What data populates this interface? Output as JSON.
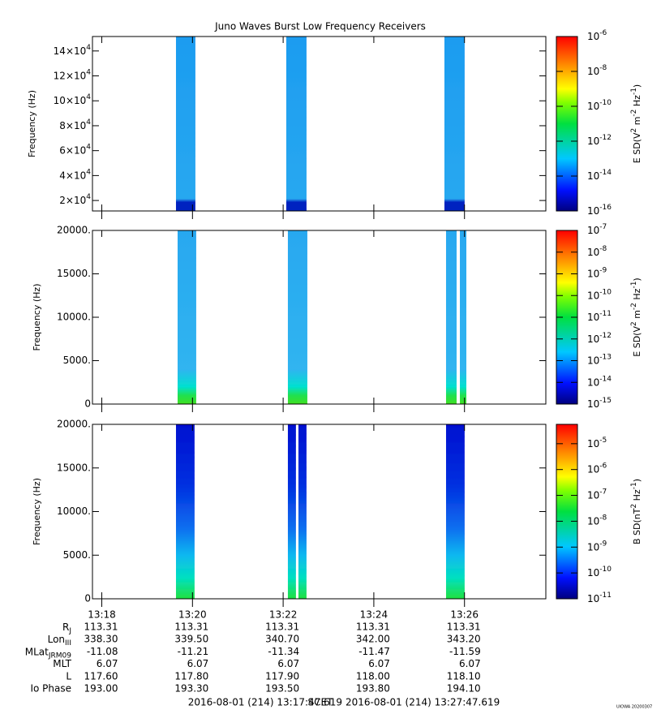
{
  "chart_data": [
    {
      "type": "spectrogram",
      "title": "Juno Waves Burst Low Frequency Receivers",
      "ylabel": "Frequency (Hz)",
      "ylim": [
        11600,
        151600
      ],
      "yticks": [
        {
          "value": 20000,
          "label": "2×10^4"
        },
        {
          "value": 40000,
          "label": "4×10^4"
        },
        {
          "value": 60000,
          "label": "6×10^4"
        },
        {
          "value": 80000,
          "label": "8×10^4"
        },
        {
          "value": 100000,
          "label": "10×10^4"
        },
        {
          "value": 120000,
          "label": "12×10^4"
        },
        {
          "value": 140000,
          "label": "14×10^4"
        }
      ],
      "xlim": [
        797.794,
        807.794
      ],
      "xticks": [
        {
          "value": 798,
          "label": "13:18"
        },
        {
          "value": 800,
          "label": "13:20"
        },
        {
          "value": 802,
          "label": "13:22"
        },
        {
          "value": 804,
          "label": "13:24"
        },
        {
          "value": 806,
          "label": "13:26"
        }
      ],
      "bursts": [
        [
          799.636,
          800.065
        ],
        [
          802.069,
          802.516
        ],
        [
          805.557,
          806.004
        ]
      ],
      "colorbar_label": "E SD(V^2 m^-2 Hz^-1)",
      "log_z": true,
      "zlim": [
        1e-16,
        1e-06
      ],
      "zticks": [
        {
          "value": 1e-06,
          "label": "10^-6"
        },
        {
          "value": 1e-08,
          "label": "10^-8"
        },
        {
          "value": 1e-10,
          "label": "10^-10"
        },
        {
          "value": 1e-12,
          "label": "10^-12"
        },
        {
          "value": 1e-14,
          "label": "10^-14"
        },
        {
          "value": 1e-16,
          "label": "10^-16"
        }
      ],
      "palette": "low"
    },
    {
      "type": "spectrogram",
      "ylabel": "Frequency (Hz)",
      "ylim": [
        0,
        20000
      ],
      "yticks": [
        0,
        {
          "value": 5000,
          "label": "5000."
        },
        {
          "value": 10000,
          "label": "10000."
        },
        {
          "value": 15000,
          "label": "15000."
        },
        {
          "value": 20000,
          "label": "20000."
        }
      ],
      "xlim": [
        797.794,
        807.794
      ],
      "xticks": [
        {
          "value": 798,
          "label": "13:18"
        },
        {
          "value": 800,
          "label": "13:20"
        },
        {
          "value": 802,
          "label": "13:22"
        },
        {
          "value": 804,
          "label": "13:24"
        },
        {
          "value": 806,
          "label": "13:26"
        }
      ],
      "bursts": [
        [
          799.672,
          800.083
        ],
        [
          802.104,
          802.534
        ],
        [
          805.593,
          805.826
        ],
        [
          805.898,
          806.041
        ]
      ],
      "colorbar_label": "E SD(V^2 m^-2 Hz^-1)",
      "log_z": true,
      "zlim": [
        1e-15,
        1e-07
      ],
      "zticks": [
        {
          "value": 1e-07,
          "label": "10^-7"
        },
        {
          "value": 1e-08,
          "label": "10^-8"
        },
        {
          "value": 1e-09,
          "label": "10^-9"
        },
        {
          "value": 1e-10,
          "label": "10^-10"
        },
        {
          "value": 1e-11,
          "label": "10^-11"
        },
        {
          "value": 1e-12,
          "label": "10^-12"
        },
        {
          "value": 1e-13,
          "label": "10^-13"
        },
        {
          "value": 1e-14,
          "label": "10^-14"
        },
        {
          "value": 1e-15,
          "label": "10^-15"
        }
      ],
      "palette": "mid"
    },
    {
      "type": "spectrogram",
      "ylabel": "Frequency (Hz)",
      "ylim": [
        0,
        20000
      ],
      "yticks": [
        0,
        {
          "value": 5000,
          "label": "5000."
        },
        {
          "value": 10000,
          "label": "10000."
        },
        {
          "value": 15000,
          "label": "15000."
        },
        {
          "value": 20000,
          "label": "20000."
        }
      ],
      "xlim": [
        797.794,
        807.794
      ],
      "xticks": [
        {
          "value": 798,
          "label": "13:18"
        },
        {
          "value": 800,
          "label": "13:20"
        },
        {
          "value": 802,
          "label": "13:22"
        },
        {
          "value": 804,
          "label": "13:24"
        },
        {
          "value": 806,
          "label": "13:26"
        }
      ],
      "bursts": [
        [
          799.636,
          800.047
        ],
        [
          802.104,
          802.283
        ],
        [
          802.337,
          802.516
        ],
        [
          805.593,
          806.004
        ]
      ],
      "colorbar_label": "B SD(nT^2 Hz^-1)",
      "log_z": true,
      "zlim": [
        1e-11,
        5.6e-05
      ],
      "zticks": [
        {
          "value": 1e-05,
          "label": "10^-5"
        },
        {
          "value": 1e-06,
          "label": "10^-6"
        },
        {
          "value": 1e-07,
          "label": "10^-7"
        },
        {
          "value": 1e-08,
          "label": "10^-8"
        },
        {
          "value": 1e-09,
          "label": "10^-9"
        },
        {
          "value": 1e-10,
          "label": "10^-10"
        },
        {
          "value": 1e-11,
          "label": "10^-11"
        }
      ],
      "palette": "mag"
    }
  ],
  "ephemeris": {
    "rows": [
      {
        "label": "R_J",
        "values": [
          "113.31",
          "113.31",
          "113.31",
          "113.31",
          "113.31"
        ]
      },
      {
        "label": "Lon_III",
        "values": [
          "338.30",
          "339.50",
          "340.70",
          "342.00",
          "343.20"
        ]
      },
      {
        "label": "MLat_JRM09",
        "values": [
          "-11.08",
          "-11.21",
          "-11.34",
          "-11.47",
          "-11.59"
        ]
      },
      {
        "label": "MLT",
        "values": [
          "6.07",
          "6.07",
          "6.07",
          "6.07",
          "6.07"
        ]
      },
      {
        "label": "L",
        "values": [
          "117.60",
          "117.80",
          "117.90",
          "118.00",
          "118.10"
        ]
      },
      {
        "label": "Io Phase",
        "values": [
          "193.00",
          "193.30",
          "193.50",
          "193.80",
          "194.10"
        ]
      }
    ]
  },
  "footer": {
    "start": "2016-08-01 (214) 13:17:47.619",
    "frame": "SCET",
    "end": "2016-08-01 (214) 13:27:47.619"
  },
  "credit": "UIOWA 20200307"
}
